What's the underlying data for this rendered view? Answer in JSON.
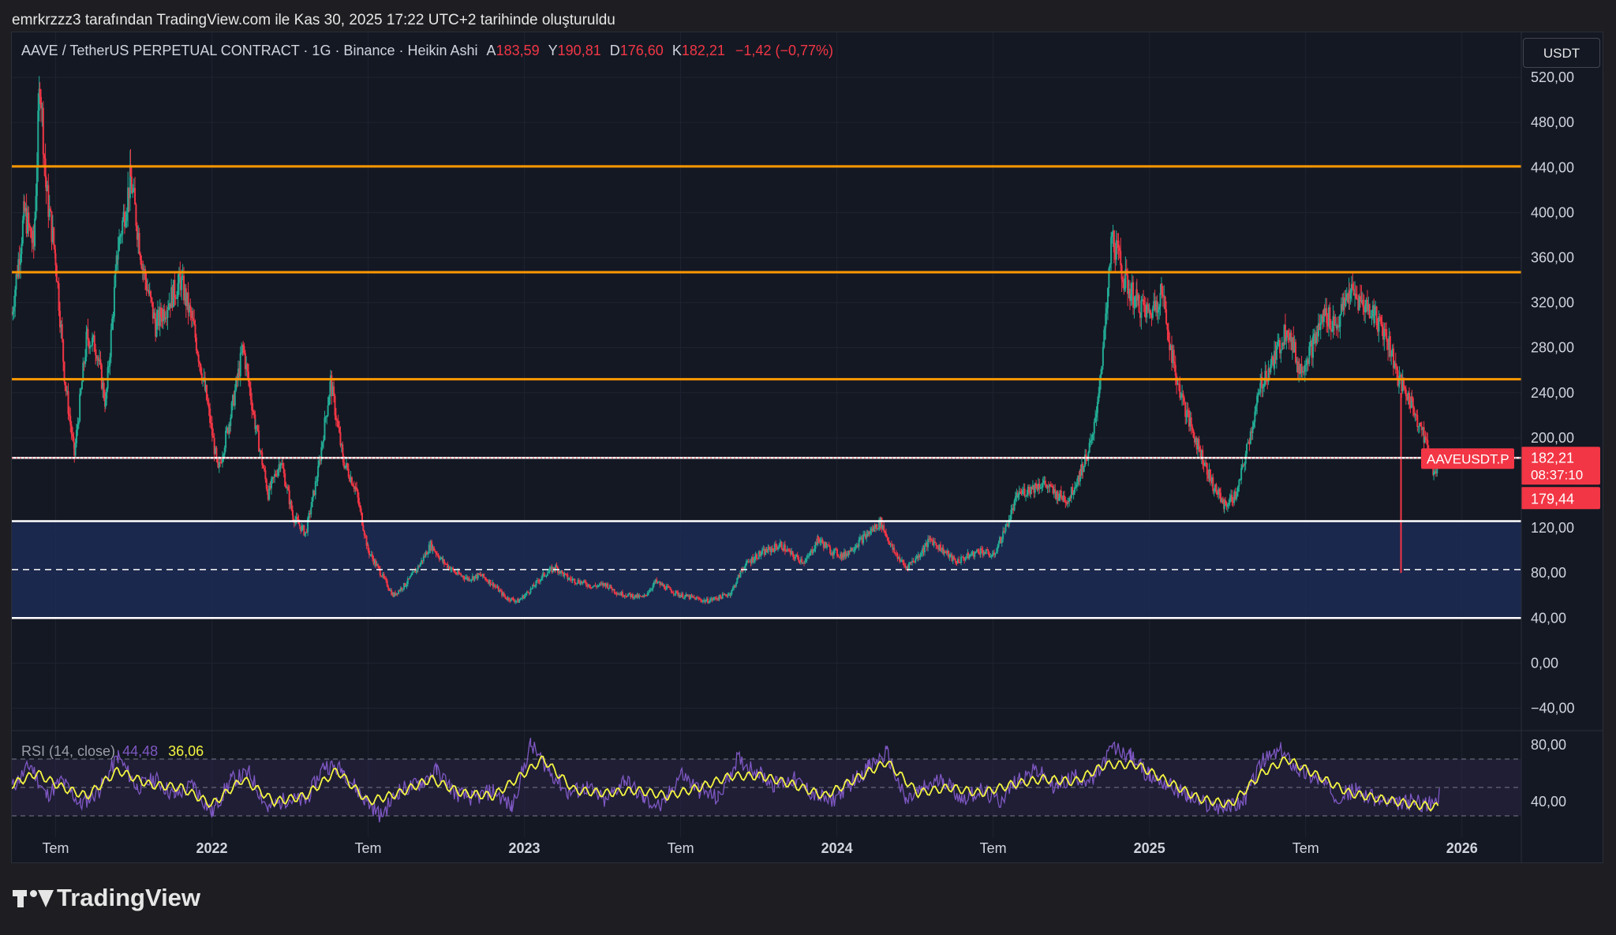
{
  "topbar": {
    "attribution": "emrkrzzz3 tarafından TradingView.com ile Kas 30, 2025 17:22 UTC+2 tarihinde oluşturuldu"
  },
  "legend": {
    "symbol": "AAVE / TetherUS PERPETUAL CONTRACT · 1G · Binance · Heikin Ashi",
    "open_label": "A",
    "open": "183,59",
    "high_label": "Y",
    "high": "190,81",
    "low_label": "D",
    "low": "176,60",
    "close_label": "K",
    "close": "182,21",
    "change": "−1,42 (−0,77%)"
  },
  "currency_button": "USDT",
  "price_tag": {
    "symbol": "AAVEUSDT.P",
    "price": "182,21",
    "countdown": "08:37:10",
    "low": "179,44",
    "color": "#f23645"
  },
  "rsi_legend": {
    "label": "RSI (14, close)",
    "value_rsi": "44,48",
    "value_ma": "36,06",
    "rsi_color": "#7e57c2",
    "ma_color": "#f5f542"
  },
  "footer": {
    "brand": "TradingView",
    "icon": "tradingview-logo-icon"
  },
  "colors": {
    "background": "#141823",
    "up": "#22ab94",
    "down": "#f23645",
    "orange_line": "#ff9800",
    "white_line": "#ffffff",
    "zone_fill": "#1c2b55"
  },
  "chart_data": {
    "type": "candlestick",
    "title": "AAVE / TetherUS PERPETUAL CONTRACT · 1G · Binance · Heikin Ashi",
    "price_axis": {
      "ticks": [
        520,
        480,
        440,
        400,
        360,
        320,
        280,
        240,
        200,
        120,
        80,
        40,
        0,
        -40
      ],
      "tick_labels": [
        "520,00",
        "480,00",
        "440,00",
        "400,00",
        "360,00",
        "320,00",
        "280,00",
        "240,00",
        "200,00",
        "120,00",
        "80,00",
        "40,00",
        "0,00",
        "−40,00"
      ],
      "range": [
        -60,
        560
      ]
    },
    "time_axis": {
      "ticks": [
        2021.5,
        2022.0,
        2022.5,
        2023.0,
        2023.5,
        2024.0,
        2024.5,
        2025.0,
        2025.5,
        2026.0
      ],
      "tick_labels": [
        "Tem",
        "2022",
        "Tem",
        "2023",
        "Tem",
        "2024",
        "Tem",
        "2025",
        "Tem",
        "2026"
      ],
      "range": [
        2021.36,
        2026.19
      ]
    },
    "horizontal_lines": [
      {
        "price": 441,
        "color": "#ff9800",
        "style": "solid"
      },
      {
        "price": 347,
        "color": "#ff9800",
        "style": "solid"
      },
      {
        "price": 252,
        "color": "#ff9800",
        "style": "solid"
      },
      {
        "price": 182.2,
        "color": "#ffffff",
        "style": "solid"
      },
      {
        "price": 126,
        "color": "#ffffff",
        "style": "solid"
      },
      {
        "price": 83,
        "color": "#ffffff",
        "style": "dashed"
      },
      {
        "price": 40,
        "color": "#ffffff",
        "style": "solid"
      }
    ],
    "zone": {
      "top": 126,
      "bottom": 40
    },
    "price_path": [
      [
        2021.36,
        310
      ],
      [
        2021.4,
        400
      ],
      [
        2021.43,
        370
      ],
      [
        2021.45,
        520
      ],
      [
        2021.47,
        420
      ],
      [
        2021.5,
        360
      ],
      [
        2021.53,
        250
      ],
      [
        2021.56,
        185
      ],
      [
        2021.6,
        290
      ],
      [
        2021.63,
        280
      ],
      [
        2021.66,
        230
      ],
      [
        2021.7,
        370
      ],
      [
        2021.74,
        430
      ],
      [
        2021.78,
        350
      ],
      [
        2021.82,
        300
      ],
      [
        2021.86,
        320
      ],
      [
        2021.9,
        340
      ],
      [
        2021.94,
        300
      ],
      [
        2021.98,
        240
      ],
      [
        2022.02,
        170
      ],
      [
        2022.06,
        220
      ],
      [
        2022.1,
        280
      ],
      [
        2022.14,
        210
      ],
      [
        2022.18,
        150
      ],
      [
        2022.22,
        180
      ],
      [
        2022.26,
        130
      ],
      [
        2022.3,
        115
      ],
      [
        2022.34,
        170
      ],
      [
        2022.38,
        250
      ],
      [
        2022.42,
        180
      ],
      [
        2022.46,
        155
      ],
      [
        2022.5,
        100
      ],
      [
        2022.54,
        80
      ],
      [
        2022.58,
        60
      ],
      [
        2022.62,
        70
      ],
      [
        2022.66,
        85
      ],
      [
        2022.7,
        105
      ],
      [
        2022.74,
        90
      ],
      [
        2022.78,
        80
      ],
      [
        2022.82,
        75
      ],
      [
        2022.86,
        78
      ],
      [
        2022.9,
        70
      ],
      [
        2022.94,
        58
      ],
      [
        2022.98,
        55
      ],
      [
        2023.02,
        65
      ],
      [
        2023.06,
        78
      ],
      [
        2023.1,
        85
      ],
      [
        2023.14,
        75
      ],
      [
        2023.18,
        72
      ],
      [
        2023.22,
        68
      ],
      [
        2023.26,
        70
      ],
      [
        2023.3,
        62
      ],
      [
        2023.34,
        60
      ],
      [
        2023.38,
        58
      ],
      [
        2023.42,
        72
      ],
      [
        2023.46,
        66
      ],
      [
        2023.5,
        60
      ],
      [
        2023.54,
        58
      ],
      [
        2023.58,
        55
      ],
      [
        2023.62,
        58
      ],
      [
        2023.66,
        62
      ],
      [
        2023.7,
        85
      ],
      [
        2023.74,
        95
      ],
      [
        2023.78,
        100
      ],
      [
        2023.82,
        105
      ],
      [
        2023.86,
        95
      ],
      [
        2023.9,
        90
      ],
      [
        2023.94,
        110
      ],
      [
        2023.98,
        100
      ],
      [
        2024.02,
        95
      ],
      [
        2024.06,
        105
      ],
      [
        2024.1,
        115
      ],
      [
        2024.14,
        125
      ],
      [
        2024.18,
        100
      ],
      [
        2024.22,
        85
      ],
      [
        2024.26,
        95
      ],
      [
        2024.3,
        110
      ],
      [
        2024.34,
        100
      ],
      [
        2024.38,
        90
      ],
      [
        2024.42,
        95
      ],
      [
        2024.46,
        100
      ],
      [
        2024.5,
        95
      ],
      [
        2024.54,
        120
      ],
      [
        2024.58,
        150
      ],
      [
        2024.62,
        155
      ],
      [
        2024.66,
        160
      ],
      [
        2024.7,
        150
      ],
      [
        2024.74,
        145
      ],
      [
        2024.78,
        170
      ],
      [
        2024.82,
        200
      ],
      [
        2024.86,
        300
      ],
      [
        2024.88,
        380
      ],
      [
        2024.92,
        340
      ],
      [
        2024.96,
        320
      ],
      [
        2025.0,
        310
      ],
      [
        2025.04,
        330
      ],
      [
        2025.08,
        260
      ],
      [
        2025.12,
        220
      ],
      [
        2025.16,
        190
      ],
      [
        2025.2,
        160
      ],
      [
        2025.24,
        140
      ],
      [
        2025.28,
        150
      ],
      [
        2025.32,
        200
      ],
      [
        2025.36,
        250
      ],
      [
        2025.4,
        270
      ],
      [
        2025.44,
        300
      ],
      [
        2025.48,
        260
      ],
      [
        2025.52,
        280
      ],
      [
        2025.56,
        310
      ],
      [
        2025.6,
        300
      ],
      [
        2025.64,
        330
      ],
      [
        2025.68,
        320
      ],
      [
        2025.72,
        310
      ],
      [
        2025.76,
        290
      ],
      [
        2025.8,
        250
      ],
      [
        2025.84,
        230
      ],
      [
        2025.88,
        200
      ],
      [
        2025.91,
        170
      ],
      [
        2025.93,
        182
      ]
    ],
    "rsi": {
      "name": "RSI (14, close)",
      "ticks": [
        80,
        40
      ],
      "tick_labels": [
        "80,00",
        "40,00"
      ],
      "range": [
        15,
        90
      ],
      "bands": [
        70,
        50,
        30
      ],
      "path": [
        [
          2021.36,
          50
        ],
        [
          2021.42,
          66
        ],
        [
          2021.47,
          44
        ],
        [
          2021.52,
          55
        ],
        [
          2021.58,
          38
        ],
        [
          2021.64,
          48
        ],
        [
          2021.7,
          72
        ],
        [
          2021.76,
          50
        ],
        [
          2021.82,
          56
        ],
        [
          2021.88,
          44
        ],
        [
          2021.94,
          52
        ],
        [
          2022.0,
          32
        ],
        [
          2022.06,
          55
        ],
        [
          2022.12,
          60
        ],
        [
          2022.18,
          35
        ],
        [
          2022.24,
          42
        ],
        [
          2022.3,
          40
        ],
        [
          2022.36,
          66
        ],
        [
          2022.42,
          62
        ],
        [
          2022.48,
          44
        ],
        [
          2022.54,
          30
        ],
        [
          2022.6,
          48
        ],
        [
          2022.66,
          52
        ],
        [
          2022.72,
          62
        ],
        [
          2022.78,
          46
        ],
        [
          2022.84,
          42
        ],
        [
          2022.9,
          48
        ],
        [
          2022.96,
          36
        ],
        [
          2023.02,
          80
        ],
        [
          2023.08,
          62
        ],
        [
          2023.14,
          46
        ],
        [
          2023.2,
          50
        ],
        [
          2023.26,
          40
        ],
        [
          2023.32,
          56
        ],
        [
          2023.38,
          42
        ],
        [
          2023.44,
          36
        ],
        [
          2023.5,
          60
        ],
        [
          2023.56,
          48
        ],
        [
          2023.62,
          42
        ],
        [
          2023.68,
          70
        ],
        [
          2023.74,
          62
        ],
        [
          2023.8,
          52
        ],
        [
          2023.86,
          56
        ],
        [
          2023.92,
          46
        ],
        [
          2023.98,
          40
        ],
        [
          2024.04,
          52
        ],
        [
          2024.1,
          64
        ],
        [
          2024.16,
          74
        ],
        [
          2024.22,
          40
        ],
        [
          2024.28,
          50
        ],
        [
          2024.34,
          56
        ],
        [
          2024.4,
          42
        ],
        [
          2024.46,
          48
        ],
        [
          2024.52,
          40
        ],
        [
          2024.58,
          56
        ],
        [
          2024.64,
          62
        ],
        [
          2024.7,
          50
        ],
        [
          2024.76,
          58
        ],
        [
          2024.82,
          54
        ],
        [
          2024.88,
          78
        ],
        [
          2024.94,
          72
        ],
        [
          2025.0,
          58
        ],
        [
          2025.06,
          52
        ],
        [
          2025.12,
          44
        ],
        [
          2025.18,
          38
        ],
        [
          2025.24,
          36
        ],
        [
          2025.3,
          40
        ],
        [
          2025.36,
          68
        ],
        [
          2025.42,
          76
        ],
        [
          2025.48,
          62
        ],
        [
          2025.54,
          56
        ],
        [
          2025.6,
          44
        ],
        [
          2025.66,
          48
        ],
        [
          2025.72,
          42
        ],
        [
          2025.78,
          38
        ],
        [
          2025.84,
          40
        ],
        [
          2025.9,
          38
        ],
        [
          2025.93,
          44
        ]
      ],
      "ma_path": [
        [
          2021.36,
          52
        ],
        [
          2021.44,
          60
        ],
        [
          2021.52,
          50
        ],
        [
          2021.6,
          44
        ],
        [
          2021.7,
          62
        ],
        [
          2021.8,
          52
        ],
        [
          2021.9,
          50
        ],
        [
          2022.0,
          38
        ],
        [
          2022.1,
          56
        ],
        [
          2022.2,
          40
        ],
        [
          2022.3,
          44
        ],
        [
          2022.4,
          62
        ],
        [
          2022.5,
          40
        ],
        [
          2022.6,
          46
        ],
        [
          2022.7,
          56
        ],
        [
          2022.8,
          46
        ],
        [
          2022.9,
          44
        ],
        [
          2023.0,
          60
        ],
        [
          2023.06,
          70
        ],
        [
          2023.16,
          48
        ],
        [
          2023.26,
          46
        ],
        [
          2023.36,
          48
        ],
        [
          2023.46,
          44
        ],
        [
          2023.56,
          50
        ],
        [
          2023.66,
          58
        ],
        [
          2023.76,
          58
        ],
        [
          2023.86,
          52
        ],
        [
          2023.96,
          44
        ],
        [
          2024.06,
          56
        ],
        [
          2024.16,
          68
        ],
        [
          2024.26,
          46
        ],
        [
          2024.36,
          50
        ],
        [
          2024.46,
          46
        ],
        [
          2024.56,
          52
        ],
        [
          2024.66,
          56
        ],
        [
          2024.76,
          54
        ],
        [
          2024.86,
          66
        ],
        [
          2024.96,
          66
        ],
        [
          2025.06,
          54
        ],
        [
          2025.16,
          42
        ],
        [
          2025.26,
          38
        ],
        [
          2025.36,
          60
        ],
        [
          2025.44,
          70
        ],
        [
          2025.54,
          58
        ],
        [
          2025.64,
          46
        ],
        [
          2025.74,
          42
        ],
        [
          2025.84,
          38
        ],
        [
          2025.93,
          36
        ]
      ]
    }
  }
}
